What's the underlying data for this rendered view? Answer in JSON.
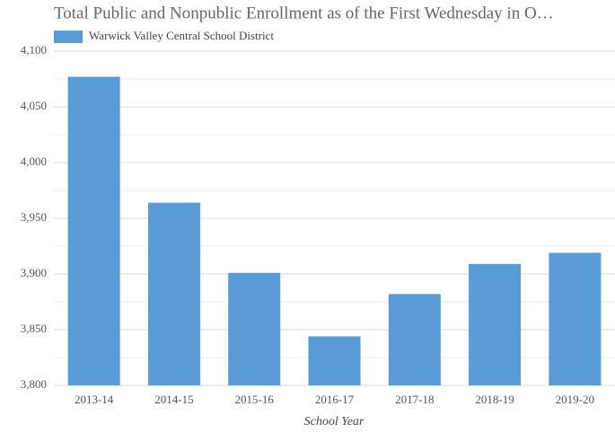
{
  "chart_data": {
    "type": "bar",
    "title": "Total Public and Nonpublic Enrollment as of the First Wednesday in O…",
    "x_label": "School Year",
    "categories": [
      "2013-14",
      "2014-15",
      "2015-16",
      "2016-17",
      "2017-18",
      "2018-19",
      "2019-20"
    ],
    "series": [
      {
        "name": "Warwick Valley Central School District",
        "color": "#5b9bd5",
        "values": [
          4077,
          3964,
          3901,
          3844,
          3882,
          3909,
          3919
        ]
      }
    ],
    "ylim": [
      3800,
      4100
    ],
    "yticks": [
      {
        "value": 3800,
        "label": "3,800"
      },
      {
        "value": 3850,
        "label": "3,850"
      },
      {
        "value": 3900,
        "label": "3,900"
      },
      {
        "value": 3950,
        "label": "3,950"
      },
      {
        "value": 4000,
        "label": "4,000"
      },
      {
        "value": 4050,
        "label": "4,050"
      },
      {
        "value": 4100,
        "label": "4,100"
      }
    ],
    "minor_yticks": [
      3825,
      3875,
      3925,
      3975,
      4025,
      4075
    ],
    "grid": true,
    "legend": "top-left"
  }
}
